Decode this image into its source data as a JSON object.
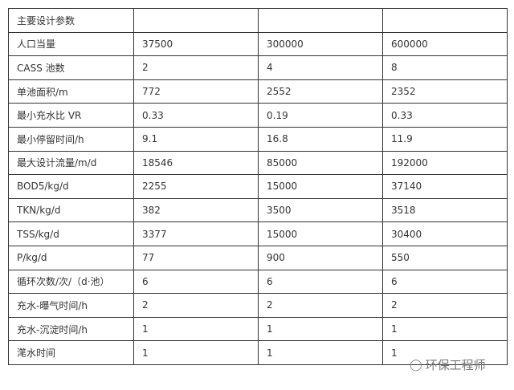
{
  "table": {
    "rows": [
      [
        "主要设计参数",
        "",
        "",
        ""
      ],
      [
        "人口当量",
        "37500",
        "300000",
        "600000"
      ],
      [
        "CASS 池数",
        "2",
        "4",
        "8"
      ],
      [
        "单池面积/m",
        "772",
        "2552",
        "2352"
      ],
      [
        "最小充水比 VR",
        "0.33",
        "0.19",
        "0.33"
      ],
      [
        "最小停留时间/h",
        "9.1",
        "16.8",
        "11.9"
      ],
      [
        "最大设计流量/m/d",
        "18546",
        "85000",
        "192000"
      ],
      [
        "BOD5/kg/d",
        "2255",
        "15000",
        "37140"
      ],
      [
        "TKN/kg/d",
        "382",
        "3500",
        "3518"
      ],
      [
        "TSS/kg/d",
        "3377",
        "15000",
        "30400"
      ],
      [
        "P/kg/d",
        "77",
        "900",
        "550"
      ],
      [
        "循环次数/次/（d·池）",
        "6",
        "6",
        "6"
      ],
      [
        "充水-曝气时间/h",
        "2",
        "2",
        "2"
      ],
      [
        "充水-沉淀时间/h",
        "1",
        "1",
        "1"
      ],
      [
        "滗水时间",
        "1",
        "1",
        "1"
      ]
    ]
  },
  "watermark": {
    "icon": "wechat-icon",
    "text": "环保工程师"
  }
}
